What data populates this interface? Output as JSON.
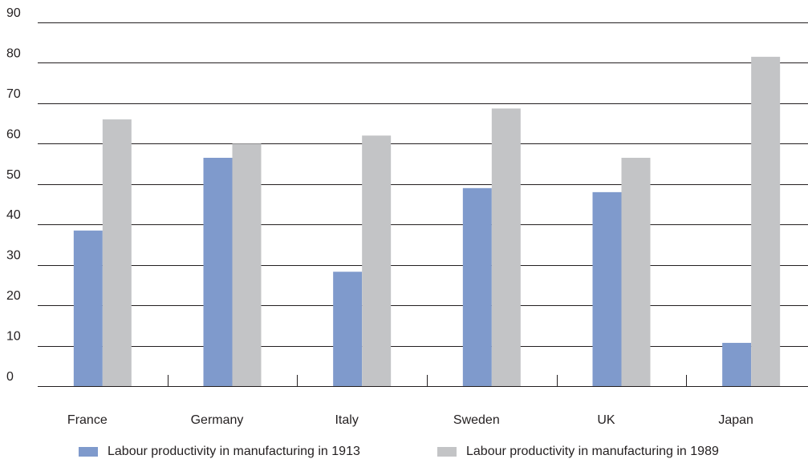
{
  "chart_data": {
    "type": "bar",
    "title": "",
    "xlabel": "",
    "ylabel": "",
    "categories": [
      "France",
      "Germany",
      "Italy",
      "Sweden",
      "UK",
      "Japan"
    ],
    "series": [
      {
        "name": "Labour productivity in manufacturing in 1913",
        "color": "#7f9acc",
        "values": [
          38.5,
          56.5,
          28.3,
          49.0,
          48.0,
          10.7
        ]
      },
      {
        "name": "Labour productivity in manufacturing in 1989",
        "color": "#c3c4c6",
        "values": [
          66.0,
          60.0,
          62.0,
          68.7,
          56.5,
          81.5
        ]
      }
    ],
    "ylim": [
      0,
      90
    ],
    "yticks": [
      0,
      10,
      20,
      30,
      40,
      50,
      60,
      70,
      80,
      90
    ],
    "grid": true,
    "legend_position": "bottom"
  }
}
